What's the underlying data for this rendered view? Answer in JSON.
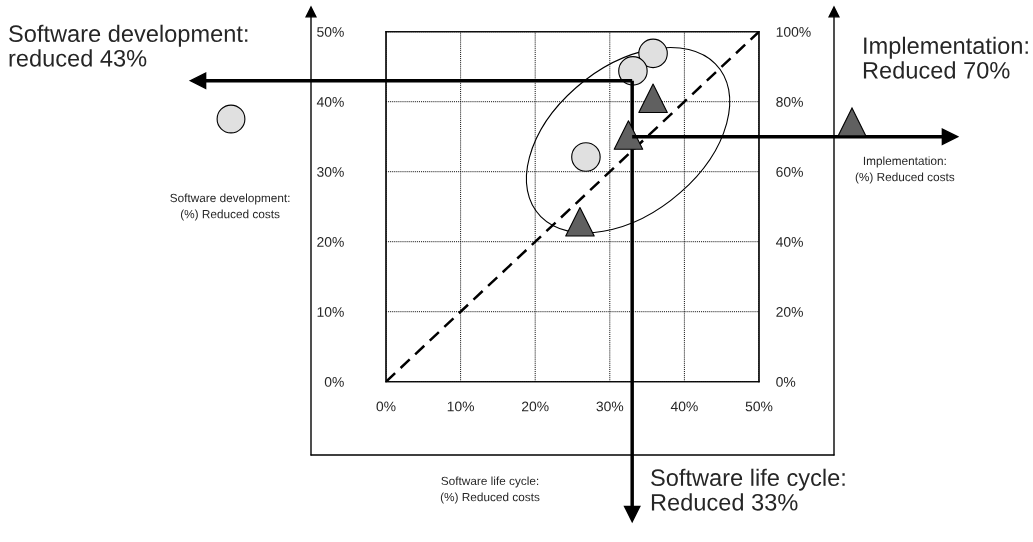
{
  "chart_data": {
    "type": "scatter",
    "annotations": [
      "Software life cycle:\n(%) Reduced costs"
    ],
    "ylabel": "Software development:\n(%) Reduced costs",
    "y2label": "Implementation:\n(%) Reduced costs",
    "xlim": [
      0,
      50
    ],
    "xticks": [
      {
        "value": 0,
        "label": "0%"
      },
      {
        "value": 10,
        "label": "10%"
      },
      {
        "value": 20,
        "label": "20%"
      },
      {
        "value": 30,
        "label": "30%"
      },
      {
        "value": 40,
        "label": "40%"
      },
      {
        "value": 50,
        "label": "50%"
      }
    ],
    "ylim": [
      0,
      50
    ],
    "yticks": [
      {
        "value": 0,
        "label": "0%"
      },
      {
        "value": 10,
        "label": "10%"
      },
      {
        "value": 20,
        "label": "20%"
      },
      {
        "value": 30,
        "label": "30%"
      },
      {
        "value": 40,
        "label": "40%"
      },
      {
        "value": 50,
        "label": "50%"
      }
    ],
    "y2lim": [
      0,
      100
    ],
    "y2ticks": [
      {
        "value": 0,
        "label": "0%"
      },
      {
        "value": 20,
        "label": "20%"
      },
      {
        "value": 40,
        "label": "40%"
      },
      {
        "value": 60,
        "label": "60%"
      },
      {
        "value": 80,
        "label": "80%"
      },
      {
        "value": 100,
        "label": "100%"
      }
    ],
    "grid": true,
    "series": [
      {
        "marker": "circle",
        "color": "#e0e0e0",
        "x": [
          35.8,
          33.1,
          26.8
        ],
        "values": [
          46.9,
          44.4,
          32.1
        ]
      },
      {
        "marker": "triangle",
        "color": "#606060",
        "axis": "y2",
        "x": [
          35.8,
          32.5,
          26.0
        ],
        "values": [
          81,
          70.5,
          45.7
        ]
      },
      {
        "type": "line",
        "line_style": "dashed",
        "marker": "none",
        "color": "#000000",
        "x": [
          0,
          50
        ],
        "values": [
          0,
          50
        ]
      }
    ],
    "ref_lines": [
      {
        "axis": "y",
        "value": 43,
        "label": "Software development:\nreduced 43%"
      },
      {
        "axis": "x",
        "value": 33,
        "label": "Software life cycle:\nReduced 33%"
      },
      {
        "axis": "y2",
        "value": 70,
        "label": "Implementation:\nReduced 70%"
      }
    ]
  }
}
